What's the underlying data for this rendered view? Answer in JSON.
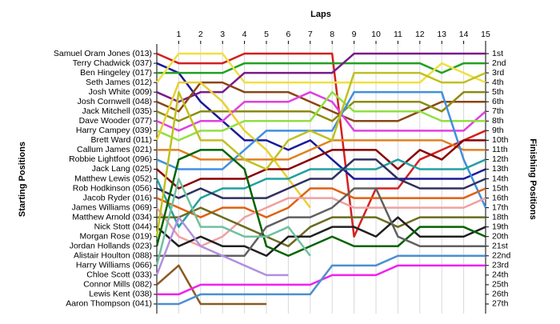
{
  "chart_data": {
    "type": "line",
    "title": "Laps",
    "y_label": "Starting Positions",
    "y2_label": "Finishing Positions",
    "x": [
      0,
      1,
      2,
      3,
      4,
      5,
      6,
      7,
      8,
      9,
      10,
      11,
      12,
      13,
      14,
      15
    ],
    "xlim": [
      0,
      15
    ],
    "xticks": [
      1,
      2,
      3,
      4,
      5,
      6,
      7,
      8,
      9,
      10,
      11,
      12,
      13,
      14,
      15
    ],
    "ylim": [
      28,
      0
    ],
    "y2lim": [
      28,
      0
    ],
    "y2ticks": [
      {
        "value": 1,
        "label": "1st"
      },
      {
        "value": 2,
        "label": "2nd"
      },
      {
        "value": 3,
        "label": "3rd"
      },
      {
        "value": 4,
        "label": "4th"
      },
      {
        "value": 5,
        "label": "5th"
      },
      {
        "value": 6,
        "label": "6th"
      },
      {
        "value": 7,
        "label": "7th"
      },
      {
        "value": 8,
        "label": "8th"
      },
      {
        "value": 9,
        "label": "9th"
      },
      {
        "value": 10,
        "label": "10th"
      },
      {
        "value": 11,
        "label": "11th"
      },
      {
        "value": 12,
        "label": "12th"
      },
      {
        "value": 13,
        "label": "13th"
      },
      {
        "value": 14,
        "label": "14th"
      },
      {
        "value": 15,
        "label": "15th"
      },
      {
        "value": 16,
        "label": "16th"
      },
      {
        "value": 17,
        "label": "17th"
      },
      {
        "value": 18,
        "label": "18th"
      },
      {
        "value": 19,
        "label": "19th"
      },
      {
        "value": 20,
        "label": "20th"
      },
      {
        "value": 21,
        "label": "21st"
      },
      {
        "value": 22,
        "label": "22nd"
      },
      {
        "value": 23,
        "label": "23rd"
      },
      {
        "value": 24,
        "label": "24th"
      },
      {
        "value": 25,
        "label": "25th"
      },
      {
        "value": 26,
        "label": "26th"
      },
      {
        "value": 27,
        "label": "27th"
      }
    ],
    "grid": true,
    "series": [
      {
        "name": "Samuel Oram Jones (013)",
        "color": "#d42020",
        "values": [
          1,
          2,
          2,
          2,
          1,
          1,
          1,
          1,
          1,
          20,
          15,
          15,
          12,
          11,
          10,
          9
        ]
      },
      {
        "name": "Terry Chadwick (037)",
        "color": "#1a1a9c",
        "values": [
          2,
          3,
          6,
          8,
          10,
          10,
          11,
          10,
          12,
          14,
          14,
          14,
          14,
          14,
          14,
          13
        ]
      },
      {
        "name": "Ben Hingeley (017)",
        "color": "#22a022",
        "values": [
          3,
          3,
          3,
          3,
          2,
          2,
          2,
          2,
          2,
          2,
          2,
          2,
          2,
          3,
          2,
          2
        ]
      },
      {
        "name": "Seth James (012)",
        "color": "#f0e040",
        "values": [
          4,
          1,
          1,
          1,
          4,
          4,
          4,
          4,
          4,
          4,
          4,
          4,
          4,
          2,
          3,
          4
        ]
      },
      {
        "name": "Josh White (009)",
        "color": "#7a1a8a",
        "values": [
          5,
          6,
          5,
          5,
          3,
          3,
          3,
          3,
          3,
          1,
          1,
          1,
          1,
          1,
          1,
          1
        ]
      },
      {
        "name": "Josh Cornwell (048)",
        "color": "#8b4513",
        "values": [
          6,
          7,
          4,
          4,
          5,
          5,
          5,
          6,
          7,
          8,
          8,
          8,
          7,
          6,
          6,
          6
        ]
      },
      {
        "name": "Jack Mitchell (035)",
        "color": "#8b8b10",
        "values": [
          7,
          8,
          7,
          7,
          7,
          7,
          7,
          7,
          8,
          6,
          6,
          6,
          6,
          7,
          5,
          5
        ]
      },
      {
        "name": "Dave Wooder (077)",
        "color": "#e040e0",
        "values": [
          8,
          9,
          8,
          8,
          6,
          6,
          6,
          5,
          6,
          9,
          9,
          9,
          9,
          9,
          9,
          7
        ]
      },
      {
        "name": "Harry Campey (039)",
        "color": "#90e040",
        "values": [
          9,
          10,
          9,
          9,
          8,
          8,
          8,
          8,
          5,
          7,
          7,
          7,
          7,
          8,
          8,
          8
        ]
      },
      {
        "name": "Brett Ward (011)",
        "color": "#e8d030",
        "values": [
          10,
          4,
          4,
          6,
          9,
          11,
          14,
          17,
          null,
          null,
          null,
          null,
          null,
          null,
          null,
          null
        ]
      },
      {
        "name": "Callum James (021)",
        "color": "#e08020",
        "values": [
          11,
          11,
          12,
          12,
          12,
          12,
          12,
          11,
          10,
          10,
          10,
          10,
          10,
          10,
          11,
          11
        ]
      },
      {
        "name": "Robbie Lightfoot (096)",
        "color": "#4090e0",
        "values": [
          12,
          13,
          13,
          13,
          11,
          9,
          9,
          9,
          9,
          5,
          5,
          5,
          5,
          5,
          12,
          17
        ]
      },
      {
        "name": "Jack Lang (025)",
        "color": "#8b0000",
        "values": [
          13,
          15,
          14,
          14,
          14,
          13,
          13,
          12,
          11,
          11,
          11,
          13,
          11,
          12,
          10,
          10
        ]
      },
      {
        "name": "Matthew Lewis (052)",
        "color": "#20a0a0",
        "values": [
          14,
          19,
          16,
          15,
          15,
          14,
          14,
          13,
          13,
          13,
          13,
          12,
          13,
          13,
          13,
          12
        ]
      },
      {
        "name": "Rob Hodkinson (056)",
        "color": "#303060",
        "values": [
          15,
          16,
          15,
          16,
          16,
          16,
          15,
          14,
          14,
          12,
          12,
          14,
          15,
          15,
          15,
          14
        ]
      },
      {
        "name": "Jacob Ryder (016)",
        "color": "#e06010",
        "values": [
          16,
          17,
          18,
          17,
          17,
          18,
          17,
          15,
          15,
          16,
          16,
          16,
          16,
          16,
          16,
          15
        ]
      },
      {
        "name": "James Williams (069)",
        "color": "#f0a0a0",
        "values": [
          17,
          20,
          21,
          20,
          18,
          17,
          16,
          16,
          16,
          17,
          17,
          17,
          17,
          17,
          17,
          16
        ]
      },
      {
        "name": "Matthew Arnold (034)",
        "color": "#6b6b20",
        "values": [
          18,
          18,
          17,
          18,
          19,
          20,
          21,
          19,
          18,
          18,
          18,
          19,
          18,
          18,
          18,
          18
        ]
      },
      {
        "name": "Nick Stott (044)",
        "color": "#202020",
        "values": [
          19,
          21,
          20,
          21,
          21,
          22,
          20,
          20,
          19,
          19,
          20,
          18,
          20,
          20,
          20,
          19
        ]
      },
      {
        "name": "Morgan Rose (019)",
        "color": "#c0c020",
        "values": [
          20,
          5,
          10,
          10,
          12,
          13,
          10,
          9,
          10,
          3,
          3,
          3,
          3,
          4,
          4,
          3
        ]
      },
      {
        "name": "Jordan Hollands (023)",
        "color": "#006400",
        "values": [
          21,
          12,
          11,
          11,
          13,
          21,
          22,
          21,
          20,
          21,
          21,
          21,
          19,
          19,
          19,
          20
        ]
      },
      {
        "name": "Alistair Houlton (088)",
        "color": "#606060",
        "values": [
          22,
          22,
          22,
          22,
          22,
          19,
          18,
          18,
          17,
          15,
          15,
          20,
          21,
          21,
          21,
          21
        ]
      },
      {
        "name": "Harry Williams (066)",
        "color": "#70c0a0",
        "values": [
          23,
          14,
          19,
          19,
          20,
          20,
          19,
          22,
          null,
          null,
          null,
          null,
          null,
          null,
          null,
          null
        ]
      },
      {
        "name": "Chloe Scott (033)",
        "color": "#b090e0",
        "values": [
          24,
          18,
          21,
          22,
          23,
          24,
          24,
          null,
          null,
          null,
          null,
          null,
          null,
          null,
          null,
          null
        ]
      },
      {
        "name": "Connor Mills (082)",
        "color": "#8b5a20",
        "values": [
          25,
          23,
          27,
          27,
          27,
          27,
          null,
          null,
          null,
          null,
          null,
          null,
          null,
          null,
          null,
          null
        ]
      },
      {
        "name": "Lewis Kent (038)",
        "color": "#f020f0",
        "values": [
          26,
          26,
          25,
          25,
          25,
          25,
          25,
          25,
          24,
          24,
          24,
          23,
          23,
          23,
          23,
          23
        ]
      },
      {
        "name": "Aaron Thompson (041)",
        "color": "#4a90d0",
        "values": [
          27,
          27,
          26,
          26,
          26,
          26,
          26,
          26,
          23,
          23,
          23,
          22,
          22,
          22,
          22,
          22
        ]
      }
    ]
  }
}
